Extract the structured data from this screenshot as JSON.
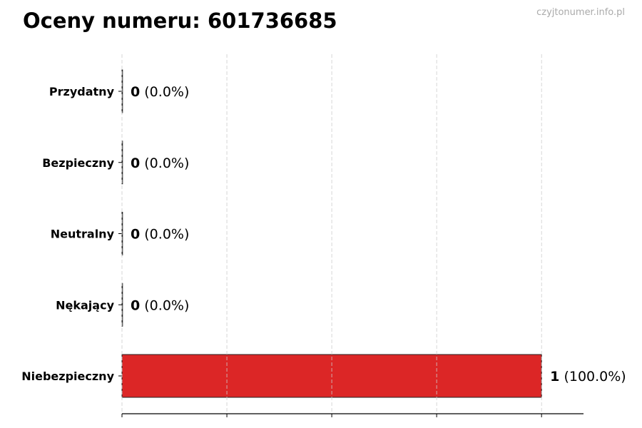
{
  "chart_data": {
    "type": "bar",
    "orientation": "horizontal",
    "title": "Oceny numeru: 601736685",
    "watermark": "czyjtonumer.info.pl",
    "categories": [
      "Przydatny",
      "Bezpieczny",
      "Neutralny",
      "Nękający",
      "Niebezpieczny"
    ],
    "values": [
      0,
      0,
      0,
      0,
      1
    ],
    "percent_labels": [
      "(0.0%)",
      "(0.0%)",
      "(0.0%)",
      "(0.0%)",
      "(100.0%)"
    ],
    "bar_colors": [
      "#2ca02c",
      "#2ca02c",
      "#999999",
      "#e67e22",
      "#dc2626"
    ],
    "xlim": [
      0,
      1.1
    ],
    "xticks": [
      0,
      0.25,
      0.5,
      0.75,
      1.0
    ],
    "grid": "x-dashed",
    "xlabel": "",
    "ylabel": ""
  }
}
